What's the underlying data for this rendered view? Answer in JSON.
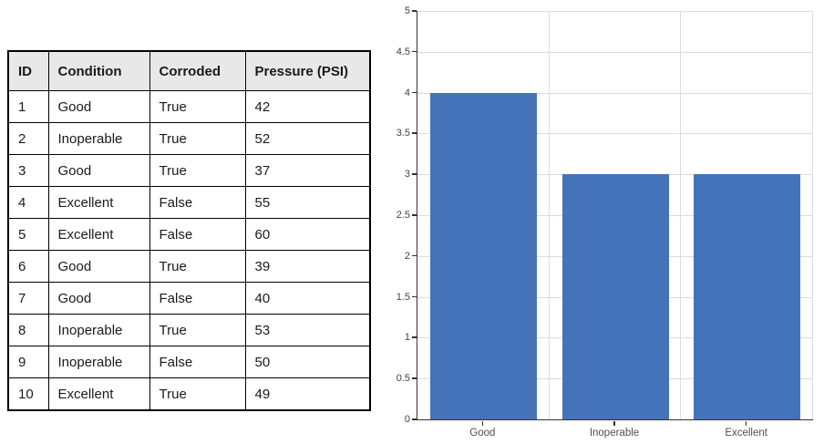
{
  "table": {
    "headers": [
      "ID",
      "Condition",
      "Corroded",
      "Pressure (PSI)"
    ],
    "rows": [
      [
        "1",
        "Good",
        "True",
        "42"
      ],
      [
        "2",
        "Inoperable",
        "True",
        "52"
      ],
      [
        "3",
        "Good",
        "True",
        "37"
      ],
      [
        "4",
        "Excellent",
        "False",
        "55"
      ],
      [
        "5",
        "Excellent",
        "False",
        "60"
      ],
      [
        "6",
        "Good",
        "True",
        "39"
      ],
      [
        "7",
        "Good",
        "False",
        "40"
      ],
      [
        "8",
        "Inoperable",
        "True",
        "53"
      ],
      [
        "9",
        "Inoperable",
        "False",
        "50"
      ],
      [
        "10",
        "Excellent",
        "True",
        "49"
      ]
    ]
  },
  "chart_data": {
    "type": "bar",
    "categories": [
      "Good",
      "Inoperable",
      "Excellent"
    ],
    "values": [
      4,
      3,
      3
    ],
    "title": "",
    "xlabel": "",
    "ylabel": "",
    "ylim": [
      0,
      5
    ],
    "ytick_step": 0.5,
    "ytick_labels": [
      "0",
      "0.5",
      "1",
      "1.5",
      "2",
      "2.5",
      "3",
      "3.5",
      "4",
      "4.5",
      "5"
    ],
    "grid": true,
    "legend_position": "none",
    "bar_color": "#4473b9"
  },
  "colors": {
    "bar": "#4473b9",
    "gridline": "#dcdcdc",
    "axis": "#333333",
    "table_border": "#000000",
    "table_header_bg": "#e9e8e8",
    "y_label": "#404040",
    "x_label": "#4f4f4f"
  }
}
